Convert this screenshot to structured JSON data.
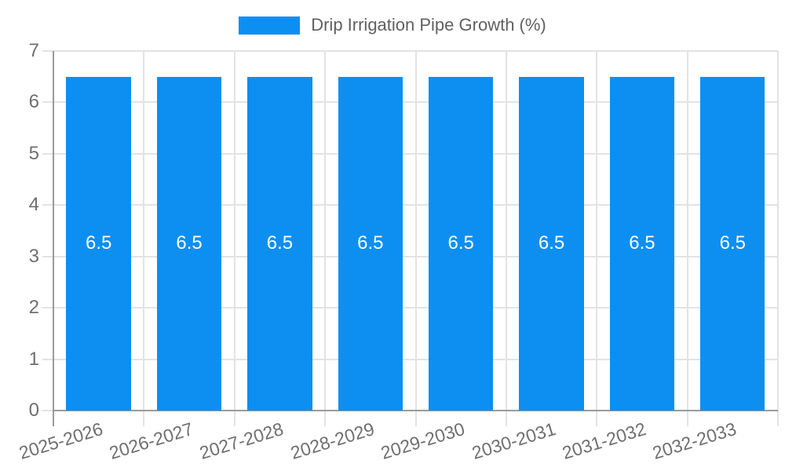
{
  "chart_data": {
    "type": "bar",
    "title": "Drip Irrigation Pipe Growth (%)",
    "categories": [
      "2025-2026",
      "2026-2027",
      "2027-2028",
      "2028-2029",
      "2029-2030",
      "2030-2031",
      "2031-2032",
      "2032-2033"
    ],
    "series": [
      {
        "name": "Drip Irrigation Pipe Growth (%)",
        "values": [
          6.5,
          6.5,
          6.5,
          6.5,
          6.5,
          6.5,
          6.5,
          6.5
        ]
      }
    ],
    "bar_value_labels": [
      "6.5",
      "6.5",
      "6.5",
      "6.5",
      "6.5",
      "6.5",
      "6.5",
      "6.5"
    ],
    "xlabel": "",
    "ylabel": "",
    "ylim": [
      0,
      7
    ],
    "yticks": [
      0,
      1,
      2,
      3,
      4,
      5,
      6,
      7
    ],
    "grid": true,
    "legend_position": "top",
    "colors": {
      "bar": "#0d8ff2",
      "grid": "#e3e3e3",
      "axis": "#9a9a9a",
      "tick_label": "#6f6f6f",
      "title": "#616161",
      "bar_label": "#ffffff",
      "background": "#ffffff"
    }
  },
  "legend": {
    "label": "Drip Irrigation Pipe Growth (%)"
  }
}
